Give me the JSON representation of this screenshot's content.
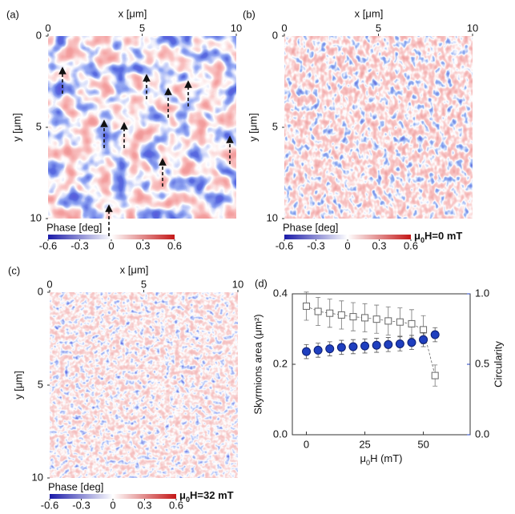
{
  "chart_data": [
    {
      "type": "image",
      "panel": "(a)",
      "xlabel": "x [μm]",
      "ylabel": "y [μm]",
      "xlim": [
        0,
        10
      ],
      "xticks": [
        0,
        5,
        10
      ],
      "ylim": [
        0,
        10
      ],
      "yticks": [
        0,
        5,
        10
      ],
      "y_reversed": true,
      "colorbar_label": "Phase [deg]",
      "clim": [
        -0.6,
        0.6
      ],
      "cticks": [
        -0.6,
        -0.3,
        0,
        0.3,
        0.6
      ]
    },
    {
      "type": "image",
      "panel": "(b)",
      "xlabel": "x [μm]",
      "ylabel": "y [μm]",
      "xlim": [
        0,
        10
      ],
      "xticks": [
        0,
        5,
        10
      ],
      "ylim": [
        0,
        10
      ],
      "yticks": [
        0,
        5,
        10
      ],
      "y_reversed": true,
      "colorbar_label": "Phase [deg]",
      "clim": [
        -0.6,
        0.6
      ],
      "cticks": [
        -0.6,
        -0.3,
        0,
        0.3,
        0.6
      ],
      "annotation": {
        "symbol": "μ",
        "sub": "0",
        "text": "H=0 mT"
      }
    },
    {
      "type": "image",
      "panel": "(c)",
      "xlabel": "x [μm]",
      "ylabel": "y [μm]",
      "xlim": [
        0,
        10
      ],
      "xticks": [
        0,
        5,
        10
      ],
      "ylim": [
        0,
        10
      ],
      "yticks": [
        0,
        5,
        10
      ],
      "y_reversed": true,
      "colorbar_label": "Phase [deg]",
      "clim": [
        -0.6,
        0.6
      ],
      "cticks": [
        -0.6,
        -0.3,
        0,
        0.3,
        0.6
      ],
      "annotation": {
        "symbol": "μ",
        "sub": "0",
        "text": "H=32 mT"
      }
    },
    {
      "type": "scatter",
      "panel": "(d)",
      "xlabel": {
        "symbol": "μ",
        "sub": "0",
        "text": "H (mT)"
      },
      "ylabel": "Skyrmions area (μm²)",
      "y2label": "Circularity",
      "x": [
        0,
        5,
        10,
        15,
        20,
        25,
        30,
        35,
        40,
        45,
        50,
        55
      ],
      "xlim": [
        -6,
        70
      ],
      "xticks": [
        0,
        25,
        50
      ],
      "ylim": [
        0,
        0.4
      ],
      "yticks": [
        {
          "value": 0,
          "label": "0.0"
        },
        {
          "value": 0.2,
          "label": "0.2"
        },
        {
          "value": 0.4,
          "label": "0.4"
        }
      ],
      "y2lim": [
        0,
        1
      ],
      "y2ticks": [
        {
          "value": 0,
          "label": "0.0"
        },
        {
          "value": 0.5,
          "label": "0.5"
        },
        {
          "value": 1,
          "label": "1.0"
        }
      ],
      "series": [
        {
          "marker": "square",
          "color": "#666666",
          "axis": "y",
          "values": [
            0.365,
            0.35,
            0.345,
            0.34,
            0.335,
            0.332,
            0.328,
            0.323,
            0.32,
            0.315,
            0.298,
            0.168
          ],
          "errors": [
            0.04,
            0.04,
            0.04,
            0.04,
            0.04,
            0.04,
            0.04,
            0.04,
            0.04,
            0.04,
            0.04,
            0.03
          ]
        },
        {
          "marker": "circle",
          "color": "#1f3fbf",
          "axis": "y2",
          "values": [
            0.59,
            0.6,
            0.61,
            0.62,
            0.625,
            0.63,
            0.635,
            0.64,
            0.645,
            0.655,
            0.675,
            0.71
          ],
          "errors": [
            0.05,
            0.05,
            0.05,
            0.05,
            0.05,
            0.05,
            0.05,
            0.05,
            0.05,
            0.05,
            0.05,
            0.05
          ]
        }
      ]
    }
  ]
}
